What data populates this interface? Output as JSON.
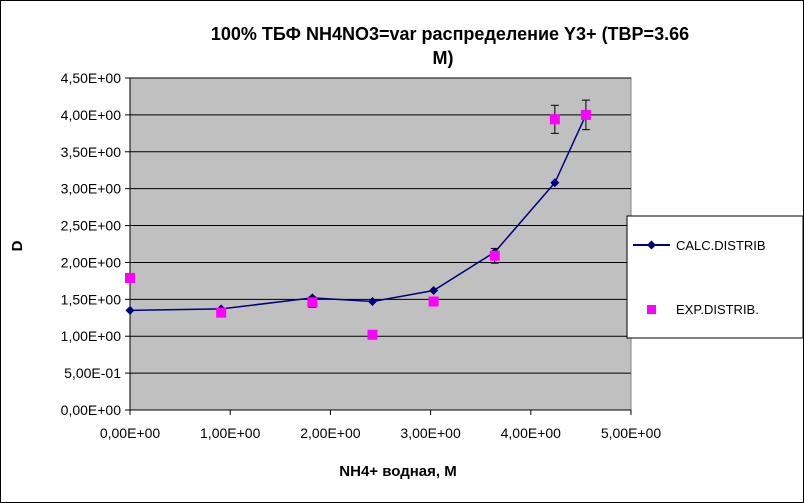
{
  "chart_data": {
    "type": "line",
    "title": "100%  ТБФ  NH4NO3=var распределение Y3+ (ТВР=3.66 М)",
    "title_lines": [
      "100%  ТБФ  NH4NO3=var распределение Y3+ (ТВР=3.66",
      "М)"
    ],
    "xlabel": "NH4+ водная, М",
    "ylabel": "D",
    "xlim": [
      0,
      5
    ],
    "ylim": [
      0,
      4.5
    ],
    "x_ticks": [
      0,
      1,
      2,
      3,
      4,
      5
    ],
    "x_tick_labels": [
      "0,00E+00",
      "1,00E+00",
      "2,00E+00",
      "3,00E+00",
      "4,00E+00",
      "5,00E+00"
    ],
    "y_ticks": [
      0,
      0.5,
      1,
      1.5,
      2,
      2.5,
      3,
      3.5,
      4,
      4.5
    ],
    "y_tick_labels": [
      "0,00E+00",
      "5,00E-01",
      "1,00E+00",
      "1,50E+00",
      "2,00E+00",
      "2,50E+00",
      "3,00E+00",
      "3,50E+00",
      "4,00E+00",
      "4,50E+00"
    ],
    "grid": "horizontal",
    "legend_position": "right",
    "plot_background": "#c0c0c0",
    "series": [
      {
        "name": "CALC.DISTRIB",
        "kind": "line-marker",
        "color": "#000080",
        "marker": "diamond",
        "x": [
          0,
          0.91,
          1.82,
          2.42,
          3.03,
          3.64,
          4.24,
          4.55
        ],
        "y": [
          1.35,
          1.37,
          1.52,
          1.47,
          1.62,
          2.14,
          3.08,
          4.0
        ]
      },
      {
        "name": "EXP.DISTRIB.",
        "kind": "marker",
        "color": "#ff00ff",
        "marker": "square",
        "x": [
          0,
          0.91,
          1.82,
          2.42,
          3.03,
          3.64,
          4.24,
          4.55
        ],
        "y": [
          1.79,
          1.32,
          1.46,
          1.02,
          1.47,
          2.09,
          3.94,
          4.0
        ],
        "error": [
          0.05,
          0.05,
          0.07,
          0.0,
          0.05,
          0.1,
          0.19,
          0.2
        ]
      }
    ]
  }
}
